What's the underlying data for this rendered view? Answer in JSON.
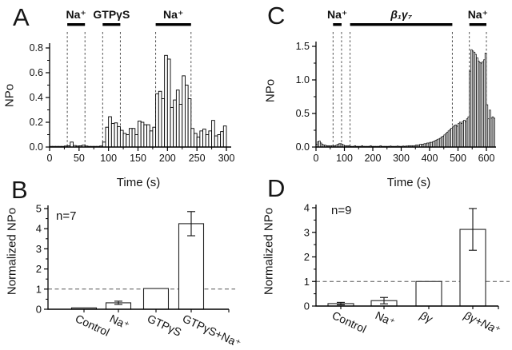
{
  "figure": {
    "background": "#ffffff",
    "colors": {
      "bar_fill": "#ffffff",
      "bar_stroke": "#000000",
      "axis": "#000000",
      "guide_dash": "#3a3a3a",
      "reference_dash": "#555555"
    },
    "panels": {
      "A": {
        "letter": "A",
        "ylabel": "NPo",
        "xlabel": "Time (s)"
      },
      "B": {
        "letter": "B",
        "ylabel": "Normalized NPo",
        "n_label": "n=7"
      },
      "C": {
        "letter": "C",
        "ylabel": "NPo",
        "xlabel": "Time (s)"
      },
      "D": {
        "letter": "D",
        "ylabel": "Normalized NPo",
        "n_label": "n=9"
      }
    }
  },
  "chart_data": [
    {
      "panel": "A",
      "type": "bar",
      "subtype": "time-histogram",
      "title": "",
      "xlabel": "Time (s)",
      "ylabel": "NPo",
      "xlim": [
        0,
        300
      ],
      "ylim": [
        0,
        0.8
      ],
      "xticks": [
        0,
        50,
        100,
        150,
        200,
        250,
        300
      ],
      "xtick_labels": [
        "0",
        "50",
        "100",
        "150",
        "200",
        "250",
        "300"
      ],
      "xminor_step": 25,
      "yticks": [
        0,
        0.2,
        0.4,
        0.6,
        0.8
      ],
      "ytick_labels": [
        "0.0",
        "0.2",
        "0.4",
        "0.6",
        "0.8"
      ],
      "yminor_step": 0.1,
      "bin_start": 0,
      "bin_width": 5,
      "values": [
        0.005,
        0.005,
        0.005,
        0.005,
        0.005,
        0.008,
        0.01,
        0.04,
        0.012,
        0.008,
        0.01,
        0.015,
        0.008,
        0.005,
        0.005,
        0.005,
        0.005,
        0.008,
        0.04,
        0.16,
        0.245,
        0.19,
        0.195,
        0.165,
        0.135,
        0.11,
        0.1,
        0.15,
        0.15,
        0.1,
        0.21,
        0.2,
        0.18,
        0.18,
        0.13,
        0.16,
        0.43,
        0.45,
        0.39,
        0.74,
        0.71,
        0.32,
        0.38,
        0.46,
        0.345,
        0.575,
        0.5,
        0.39,
        0.15,
        0.11,
        0.08,
        0.13,
        0.145,
        0.1,
        0.13,
        0.215,
        0.09,
        0.1,
        0.125,
        0.17
      ],
      "treatments": [
        {
          "label": "Na⁺",
          "start": 30,
          "end": 60
        },
        {
          "label": "GTPγS",
          "start": 90,
          "end": 120
        },
        {
          "label": "Na⁺",
          "start": 180,
          "end": 240
        }
      ],
      "dashed_x": [
        30,
        60,
        90,
        120,
        180,
        240
      ]
    },
    {
      "panel": "B",
      "type": "bar",
      "subtype": "summary",
      "ylabel": "Normalized NPo",
      "n_label": "n=7",
      "ylim": [
        0,
        5
      ],
      "yticks": [
        0,
        1,
        2,
        3,
        4,
        5
      ],
      "ytick_labels": [
        "0",
        "1",
        "2",
        "3",
        "4",
        "5"
      ],
      "yminor_step": 0.5,
      "categories": [
        "Control",
        "Na⁺",
        "GTPγS",
        "GTPγS+Na⁺"
      ],
      "values": [
        0.07,
        0.32,
        1.03,
        4.25
      ],
      "errors": [
        0,
        0.08,
        0,
        0.6
      ],
      "reference_line_y": 1
    },
    {
      "panel": "C",
      "type": "bar",
      "subtype": "time-histogram",
      "title": "",
      "xlabel": "Time (s)",
      "ylabel": "NPo",
      "xlim": [
        0,
        600
      ],
      "ylim": [
        0,
        1.5
      ],
      "xticks": [
        0,
        100,
        200,
        300,
        400,
        500,
        600
      ],
      "xtick_labels": [
        "0",
        "100",
        "200",
        "300",
        "400",
        "500",
        "600"
      ],
      "xminor_step": 50,
      "yticks": [
        0,
        0.5,
        1.0,
        1.5
      ],
      "ytick_labels": [
        "0.0",
        "0.5",
        "1.0",
        "1.5"
      ],
      "yminor_step": 0.25,
      "bin_start": 0,
      "bin_width": 5,
      "values": [
        0.04,
        0.08,
        0.09,
        0.06,
        0.04,
        0.03,
        0.03,
        0.02,
        0.02,
        0.02,
        0.02,
        0.02,
        0.02,
        0.02,
        0.03,
        0.04,
        0.05,
        0.05,
        0.04,
        0.03,
        0.02,
        0.02,
        0.02,
        0.02,
        0.01,
        0.01,
        0.01,
        0.02,
        0.01,
        0.01,
        0.01,
        0.01,
        0.02,
        0.01,
        0.01,
        0.01,
        0.01,
        0.01,
        0.02,
        0.01,
        0.01,
        0.01,
        0.01,
        0.01,
        0.01,
        0.02,
        0.01,
        0.01,
        0.01,
        0.01,
        0.01,
        0.01,
        0.015,
        0.01,
        0.01,
        0.01,
        0.01,
        0.015,
        0.01,
        0.01,
        0.01,
        0.015,
        0.01,
        0.015,
        0.015,
        0.02,
        0.02,
        0.02,
        0.02,
        0.02,
        0.03,
        0.03,
        0.03,
        0.04,
        0.04,
        0.04,
        0.05,
        0.05,
        0.06,
        0.06,
        0.07,
        0.07,
        0.08,
        0.09,
        0.1,
        0.11,
        0.12,
        0.13,
        0.15,
        0.16,
        0.18,
        0.2,
        0.22,
        0.24,
        0.26,
        0.28,
        0.3,
        0.32,
        0.33,
        0.31,
        0.35,
        0.37,
        0.35,
        0.38,
        0.4,
        0.38,
        0.42,
        0.45,
        1.13,
        1.45,
        1.43,
        1.41,
        1.38,
        1.33,
        1.28,
        1.26,
        1.25,
        1.27,
        1.3,
        1.4,
        0.63,
        0.42,
        0.55,
        0.43,
        0.45,
        0.43
      ],
      "treatments": [
        {
          "label": "Na⁺",
          "start": 60,
          "end": 90
        },
        {
          "label": "β₁γ₇",
          "start": 120,
          "end": 480
        },
        {
          "label": "Na⁺",
          "start": 540,
          "end": 600
        }
      ],
      "dashed_x": [
        60,
        90,
        120,
        480,
        540,
        600
      ]
    },
    {
      "panel": "D",
      "type": "bar",
      "subtype": "summary",
      "ylabel": "Normalized NPo",
      "n_label": "n=9",
      "ylim": [
        0,
        4
      ],
      "yticks": [
        0,
        1,
        2,
        3,
        4
      ],
      "ytick_labels": [
        "0",
        "1",
        "2",
        "3",
        "4"
      ],
      "yminor_step": 0.5,
      "categories": [
        "Control",
        "Na⁺",
        "βγ",
        "βγ+Na⁺"
      ],
      "values": [
        0.1,
        0.22,
        1.0,
        3.12
      ],
      "errors": [
        0.05,
        0.13,
        0,
        0.85
      ],
      "reference_line_y": 1
    }
  ]
}
